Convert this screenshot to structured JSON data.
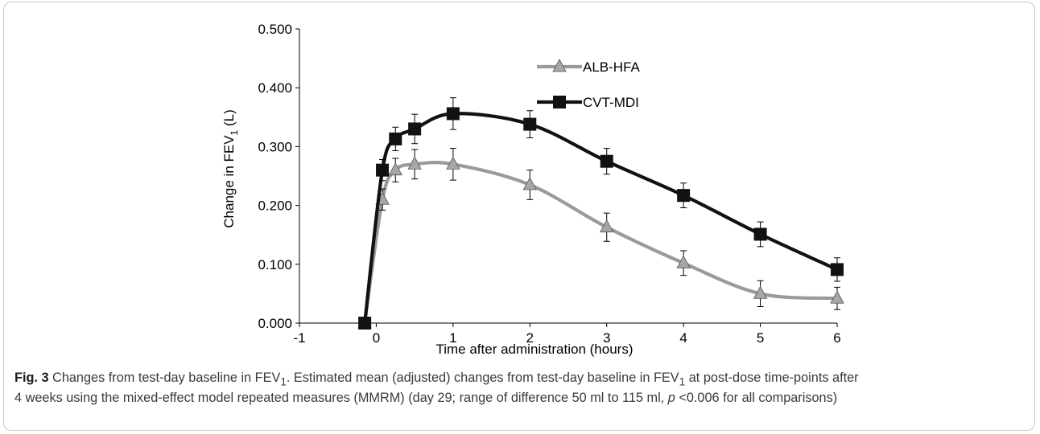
{
  "chart_data": {
    "type": "line",
    "xlabel": "Time after administration (hours)",
    "ylabel": "Change in FEV1 (L)",
    "ylabel_main": "Change in FEV",
    "ylabel_sub": "1",
    "ylabel_tail": " (L)",
    "xlim": [
      -1,
      6
    ],
    "ylim": [
      0,
      0.5
    ],
    "x_ticks": [
      "-1",
      "0",
      "1",
      "2",
      "3",
      "4",
      "5",
      "6"
    ],
    "y_ticks": [
      "0.000",
      "0.100",
      "0.200",
      "0.300",
      "0.400",
      "0.500"
    ],
    "grid": false,
    "legend_position": "top-center",
    "series": [
      {
        "name": "ALB-HFA",
        "marker": "triangle",
        "color": "#9a9a9a",
        "marker_color": "#a6a6a6",
        "points": [
          {
            "x": -0.15,
            "y": 0.0,
            "err": 0
          },
          {
            "x": 0.08,
            "y": 0.21,
            "err": 0.018
          },
          {
            "x": 0.25,
            "y": 0.26,
            "err": 0.02
          },
          {
            "x": 0.5,
            "y": 0.27,
            "err": 0.025
          },
          {
            "x": 1,
            "y": 0.27,
            "err": 0.027
          },
          {
            "x": 2,
            "y": 0.235,
            "err": 0.025
          },
          {
            "x": 3,
            "y": 0.163,
            "err": 0.024
          },
          {
            "x": 4,
            "y": 0.102,
            "err": 0.021
          },
          {
            "x": 5,
            "y": 0.05,
            "err": 0.022
          },
          {
            "x": 6,
            "y": 0.042,
            "err": 0.019
          }
        ]
      },
      {
        "name": "CVT-MDI",
        "marker": "square",
        "color": "#111111",
        "marker_color": "#111111",
        "points": [
          {
            "x": -0.15,
            "y": 0.0,
            "err": 0
          },
          {
            "x": 0.08,
            "y": 0.26,
            "err": 0.018
          },
          {
            "x": 0.25,
            "y": 0.313,
            "err": 0.02
          },
          {
            "x": 0.5,
            "y": 0.33,
            "err": 0.025
          },
          {
            "x": 1,
            "y": 0.356,
            "err": 0.027
          },
          {
            "x": 2,
            "y": 0.338,
            "err": 0.023
          },
          {
            "x": 3,
            "y": 0.275,
            "err": 0.022
          },
          {
            "x": 4,
            "y": 0.217,
            "err": 0.021
          },
          {
            "x": 5,
            "y": 0.151,
            "err": 0.021
          },
          {
            "x": 6,
            "y": 0.091,
            "err": 0.02
          }
        ]
      }
    ]
  },
  "caption": {
    "fig_label": "Fig. 3",
    "line1_a": " Changes from test-day baseline in FEV",
    "line1_sub1": "1",
    "line1_b": ". Estimated mean (adjusted) changes from test-day baseline in FEV",
    "line1_sub2": "1",
    "line1_c": " at post-dose time-points after",
    "line2_a": "4 weeks using the mixed-effect model repeated measures (MMRM) (day 29; range of difference 50 ml to 115 ml, ",
    "line2_p": "p",
    "line2_b": " <0.006 for all comparisons)"
  }
}
